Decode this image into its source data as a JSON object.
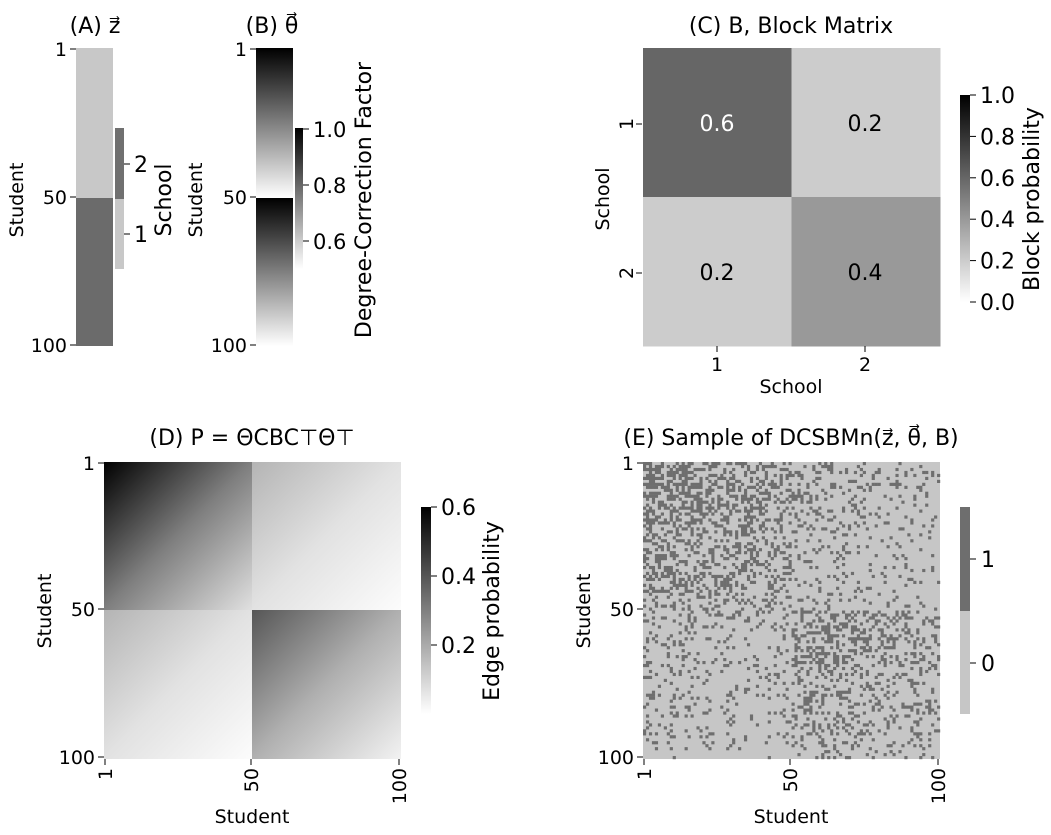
{
  "figure": {
    "panels": [
      {
        "id": "A",
        "title": "(A) z⃗",
        "chart_data": {
          "type": "heatmap",
          "ylabel": "Student",
          "yticks": [
            "1",
            "50",
            "100"
          ],
          "rows": 100,
          "segments": [
            {
              "rows": [
                1,
                50
              ],
              "school": 1
            },
            {
              "rows": [
                51,
                100
              ],
              "school": 2
            }
          ],
          "colorbar": {
            "label": "School",
            "ticks": [
              "2",
              "1"
            ],
            "colors": [
              "#707070",
              "#c8c8c8"
            ]
          }
        }
      },
      {
        "id": "B",
        "title": "(B) θ⃗",
        "chart_data": {
          "type": "heatmap",
          "ylabel": "Student",
          "yticks": [
            "1",
            "50",
            "100"
          ],
          "rows": 100,
          "gradient_within_block": {
            "max": 1.0,
            "min": 0.5
          },
          "colorbar": {
            "label": "Degree-Correction Factor",
            "ticks": [
              "1.0",
              "0.8",
              "0.6"
            ],
            "range": [
              0.5,
              1.0
            ]
          }
        }
      },
      {
        "id": "C",
        "title": "(C) B, Block Matrix",
        "chart_data": {
          "type": "heatmap",
          "xlabel": "School",
          "ylabel": "School",
          "xticks": [
            "1",
            "2"
          ],
          "yticks": [
            "1",
            "2"
          ],
          "cells": [
            [
              "0.6",
              "0.2"
            ],
            [
              "0.2",
              "0.4"
            ]
          ],
          "values": [
            [
              0.6,
              0.2
            ],
            [
              0.2,
              0.4
            ]
          ],
          "colorbar": {
            "label": "Block probability",
            "ticks": [
              "1.0",
              "0.8",
              "0.6",
              "0.4",
              "0.2",
              "0.0"
            ],
            "range": [
              0.0,
              1.0
            ]
          }
        }
      },
      {
        "id": "D",
        "title": "(D) P = ΘCBC⊤Θ⊤",
        "chart_data": {
          "type": "heatmap",
          "xlabel": "Student",
          "ylabel": "Student",
          "xticks": [
            "1",
            "50",
            "100"
          ],
          "yticks": [
            "1",
            "50",
            "100"
          ],
          "colorbar": {
            "label": "Edge probability",
            "ticks": [
              "0.6",
              "0.4",
              "0.2"
            ],
            "range": [
              0.0,
              0.6
            ]
          }
        }
      },
      {
        "id": "E",
        "title": "(E) Sample of DCSBMn(z⃗, θ⃗, B)",
        "chart_data": {
          "type": "heatmap",
          "xlabel": "Student",
          "ylabel": "Student",
          "xticks": [
            "1",
            "50",
            "100"
          ],
          "yticks": [
            "1",
            "50",
            "100"
          ],
          "colorbar": {
            "ticks": [
              "1",
              "0"
            ],
            "colors": [
              "#6e6e6e",
              "#c6c6c6"
            ]
          }
        }
      }
    ]
  }
}
